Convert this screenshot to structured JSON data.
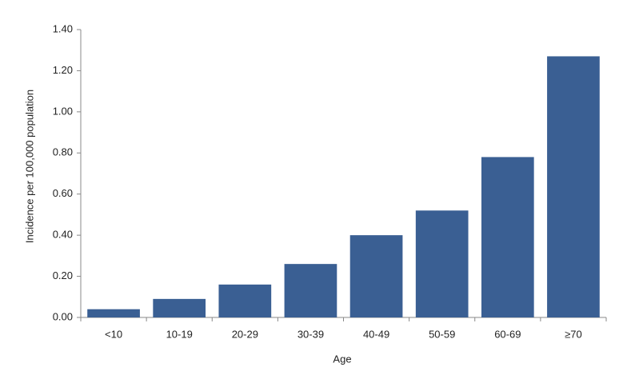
{
  "chart_data": {
    "type": "bar",
    "xlabel": "Age",
    "ylabel": "Incidence per 100,000 population",
    "categories": [
      "<10",
      "10-19",
      "20-29",
      "30-39",
      "40-49",
      "50-59",
      "60-69",
      "≥70"
    ],
    "values": [
      0.04,
      0.09,
      0.16,
      0.26,
      0.4,
      0.52,
      0.78,
      1.27
    ],
    "color": "#3a5f93",
    "ylim": [
      0,
      1.4
    ],
    "yticks": [
      {
        "value": 0,
        "label": "0.00"
      },
      {
        "value": 0.2,
        "label": "0.20"
      },
      {
        "value": 0.4,
        "label": "0.40"
      },
      {
        "value": 0.6,
        "label": "0.60"
      },
      {
        "value": 0.8,
        "label": "0.80"
      },
      {
        "value": 1.0,
        "label": "1.00"
      },
      {
        "value": 1.2,
        "label": "1.20"
      },
      {
        "value": 1.4,
        "label": "1.40"
      }
    ]
  }
}
